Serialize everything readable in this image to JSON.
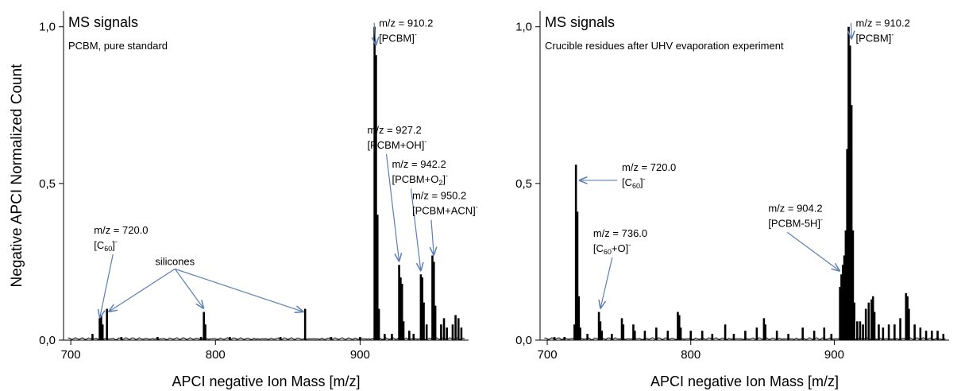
{
  "ylabel": "Negative APCI Normalized Count",
  "chart_data": [
    {
      "type": "bar",
      "title": "MS signals",
      "subtitle": "PCBM, pure standard",
      "xlabel": "APCI negative Ion Mass [m/z]",
      "xlim": [
        695,
        975
      ],
      "ylim": [
        0,
        1.05
      ],
      "xticks": [
        700,
        800,
        900
      ],
      "yticks": [
        {
          "v": 0,
          "label": "0,0"
        },
        {
          "v": 0.5,
          "label": "0,5"
        },
        {
          "v": 1.0,
          "label": "1,0"
        }
      ],
      "peaks": [
        {
          "x": 715,
          "y": 0.02
        },
        {
          "x": 720,
          "y": 0.07
        },
        {
          "x": 721,
          "y": 0.08
        },
        {
          "x": 722,
          "y": 0.05
        },
        {
          "x": 725,
          "y": 0.1
        },
        {
          "x": 735,
          "y": 0.01
        },
        {
          "x": 760,
          "y": 0.01
        },
        {
          "x": 790,
          "y": 0.01
        },
        {
          "x": 792,
          "y": 0.09
        },
        {
          "x": 793,
          "y": 0.05
        },
        {
          "x": 810,
          "y": 0.01
        },
        {
          "x": 845,
          "y": 0.01
        },
        {
          "x": 862,
          "y": 0.1
        },
        {
          "x": 880,
          "y": 0.01
        },
        {
          "x": 900,
          "y": 0.01
        },
        {
          "x": 910,
          "y": 1.0
        },
        {
          "x": 911,
          "y": 0.91
        },
        {
          "x": 912,
          "y": 0.4
        },
        {
          "x": 913,
          "y": 0.1
        },
        {
          "x": 917,
          "y": 0.02
        },
        {
          "x": 922,
          "y": 0.02
        },
        {
          "x": 927,
          "y": 0.24
        },
        {
          "x": 928,
          "y": 0.2
        },
        {
          "x": 929,
          "y": 0.18
        },
        {
          "x": 930,
          "y": 0.06
        },
        {
          "x": 934,
          "y": 0.03
        },
        {
          "x": 937,
          "y": 0.02
        },
        {
          "x": 942,
          "y": 0.21
        },
        {
          "x": 943,
          "y": 0.2
        },
        {
          "x": 944,
          "y": 0.12
        },
        {
          "x": 946,
          "y": 0.05
        },
        {
          "x": 950,
          "y": 0.27
        },
        {
          "x": 951,
          "y": 0.25
        },
        {
          "x": 952,
          "y": 0.11
        },
        {
          "x": 956,
          "y": 0.05
        },
        {
          "x": 958,
          "y": 0.07
        },
        {
          "x": 960,
          "y": 0.04
        },
        {
          "x": 964,
          "y": 0.05
        },
        {
          "x": 966,
          "y": 0.08
        },
        {
          "x": 968,
          "y": 0.07
        },
        {
          "x": 970,
          "y": 0.04
        }
      ],
      "annotations": [
        {
          "name": "annotation-910",
          "mz": "m/z = 910.2",
          "ion": "[PCBM]",
          "sup": "-",
          "tx": 913,
          "ty": 1.0,
          "arrow_to": [
            {
              "x": 911,
              "y": 0.94
            }
          ]
        },
        {
          "name": "annotation-927",
          "mz": "m/z = 927.2",
          "ion": "[PCBM+OH]",
          "sup": "-",
          "tx": 905,
          "ty": 0.66,
          "arrow_to": [
            {
              "x": 927,
              "y": 0.25
            }
          ]
        },
        {
          "name": "annotation-942",
          "mz": "m/z = 942.2",
          "ion": "[PCBM+O",
          "sub": "2",
          "ion_after": "]",
          "sup": "-",
          "tx": 922,
          "ty": 0.55,
          "arrow_to": [
            {
              "x": 942,
              "y": 0.22
            }
          ]
        },
        {
          "name": "annotation-950",
          "mz": "m/z = 950.2",
          "ion": "[PCBM+ACN]",
          "sup": "-",
          "tx": 936,
          "ty": 0.45,
          "arrow_to": [
            {
              "x": 951,
              "y": 0.27
            }
          ]
        },
        {
          "name": "annotation-720",
          "mz": "m/z = 720.0",
          "ion": "[C",
          "sub": "60",
          "ion_after": "]",
          "sup": "-",
          "tx": 716,
          "ty": 0.34,
          "arrow_to": [
            {
              "x": 720,
              "y": 0.07
            }
          ]
        },
        {
          "name": "annotation-silicones",
          "label": "silicones",
          "tx": 772,
          "ty": 0.24,
          "arrow_to": [
            {
              "x": 726,
              "y": 0.09
            },
            {
              "x": 792,
              "y": 0.1
            },
            {
              "x": 861,
              "y": 0.09
            }
          ]
        }
      ]
    },
    {
      "type": "bar",
      "title": "MS signals",
      "subtitle": "Crucible residues after UHV evaporation experiment",
      "xlabel": "APCI negative Ion Mass [m/z]",
      "xlim": [
        695,
        980
      ],
      "ylim": [
        0,
        1.05
      ],
      "xticks": [
        700,
        800,
        900
      ],
      "yticks": [
        {
          "v": 0,
          "label": "0,0"
        },
        {
          "v": 0.5,
          "label": "0,5"
        },
        {
          "v": 1.0,
          "label": "1,0"
        }
      ],
      "peaks": [
        {
          "x": 705,
          "y": 0.01
        },
        {
          "x": 712,
          "y": 0.01
        },
        {
          "x": 719,
          "y": 0.05
        },
        {
          "x": 720,
          "y": 0.56
        },
        {
          "x": 721,
          "y": 0.41
        },
        {
          "x": 722,
          "y": 0.14
        },
        {
          "x": 723,
          "y": 0.04
        },
        {
          "x": 728,
          "y": 0.02
        },
        {
          "x": 736,
          "y": 0.09
        },
        {
          "x": 737,
          "y": 0.06
        },
        {
          "x": 738,
          "y": 0.03
        },
        {
          "x": 745,
          "y": 0.02
        },
        {
          "x": 752,
          "y": 0.07
        },
        {
          "x": 753,
          "y": 0.05
        },
        {
          "x": 760,
          "y": 0.05
        },
        {
          "x": 761,
          "y": 0.03
        },
        {
          "x": 768,
          "y": 0.03
        },
        {
          "x": 776,
          "y": 0.04
        },
        {
          "x": 784,
          "y": 0.03
        },
        {
          "x": 791,
          "y": 0.09
        },
        {
          "x": 792,
          "y": 0.08
        },
        {
          "x": 793,
          "y": 0.04
        },
        {
          "x": 800,
          "y": 0.03
        },
        {
          "x": 808,
          "y": 0.03
        },
        {
          "x": 815,
          "y": 0.02
        },
        {
          "x": 824,
          "y": 0.05
        },
        {
          "x": 830,
          "y": 0.02
        },
        {
          "x": 838,
          "y": 0.03
        },
        {
          "x": 846,
          "y": 0.04
        },
        {
          "x": 851,
          "y": 0.07
        },
        {
          "x": 852,
          "y": 0.05
        },
        {
          "x": 860,
          "y": 0.03
        },
        {
          "x": 868,
          "y": 0.02
        },
        {
          "x": 878,
          "y": 0.04
        },
        {
          "x": 886,
          "y": 0.03
        },
        {
          "x": 893,
          "y": 0.04
        },
        {
          "x": 898,
          "y": 0.02
        },
        {
          "x": 904,
          "y": 0.17
        },
        {
          "x": 905,
          "y": 0.21
        },
        {
          "x": 906,
          "y": 0.24
        },
        {
          "x": 907,
          "y": 0.27
        },
        {
          "x": 908,
          "y": 0.35
        },
        {
          "x": 909,
          "y": 0.61
        },
        {
          "x": 910,
          "y": 1.0
        },
        {
          "x": 911,
          "y": 0.94
        },
        {
          "x": 912,
          "y": 0.75
        },
        {
          "x": 913,
          "y": 0.35
        },
        {
          "x": 914,
          "y": 0.12
        },
        {
          "x": 916,
          "y": 0.06
        },
        {
          "x": 918,
          "y": 0.06
        },
        {
          "x": 920,
          "y": 0.05
        },
        {
          "x": 922,
          "y": 0.1
        },
        {
          "x": 924,
          "y": 0.12
        },
        {
          "x": 926,
          "y": 0.13
        },
        {
          "x": 927,
          "y": 0.14
        },
        {
          "x": 928,
          "y": 0.09
        },
        {
          "x": 931,
          "y": 0.05
        },
        {
          "x": 934,
          "y": 0.04
        },
        {
          "x": 938,
          "y": 0.05
        },
        {
          "x": 942,
          "y": 0.05
        },
        {
          "x": 946,
          "y": 0.07
        },
        {
          "x": 950,
          "y": 0.15
        },
        {
          "x": 951,
          "y": 0.14
        },
        {
          "x": 952,
          "y": 0.1
        },
        {
          "x": 956,
          "y": 0.05
        },
        {
          "x": 960,
          "y": 0.04
        },
        {
          "x": 964,
          "y": 0.03
        },
        {
          "x": 968,
          "y": 0.03
        },
        {
          "x": 972,
          "y": 0.03
        },
        {
          "x": 976,
          "y": 0.02
        }
      ],
      "annotations": [
        {
          "name": "annotation-910",
          "mz": "m/z = 910.2",
          "ion": "[PCBM]",
          "sup": "-",
          "tx": 915,
          "ty": 1.0,
          "arrow_to": [
            {
              "x": 912,
              "y": 0.96
            }
          ]
        },
        {
          "name": "annotation-720",
          "mz": "m/z = 720.0",
          "ion": "[C",
          "sub": "60",
          "ion_after": "]",
          "sup": "-",
          "tx": 752,
          "ty": 0.54,
          "arrow_to": [
            {
              "x": 722,
              "y": 0.51
            }
          ]
        },
        {
          "name": "annotation-736",
          "mz": "m/z = 736.0",
          "ion": "[C",
          "sub": "60",
          "ion_after": "+O]",
          "sup": "-",
          "tx": 732,
          "ty": 0.33,
          "arrow_to": [
            {
              "x": 737,
              "y": 0.1
            }
          ]
        },
        {
          "name": "annotation-904",
          "mz": "m/z = 904.2",
          "ion": "[PCBM-5H]",
          "sup": "-",
          "tx": 854,
          "ty": 0.41,
          "arrow_to": [
            {
              "x": 904,
              "y": 0.22
            }
          ]
        }
      ]
    }
  ]
}
